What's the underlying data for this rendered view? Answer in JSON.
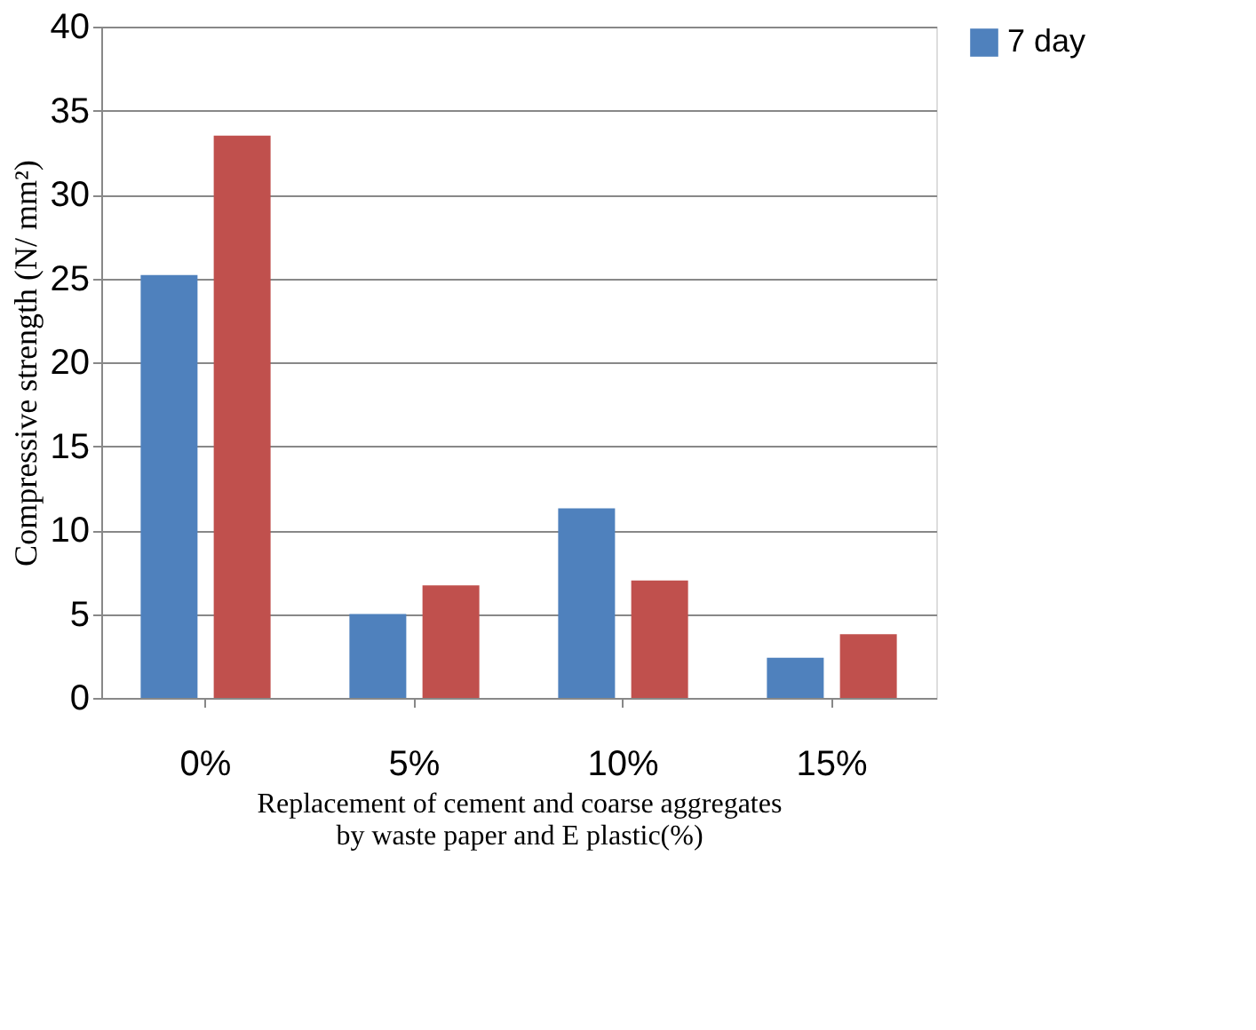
{
  "chart_data": {
    "type": "bar",
    "xlabel": "Replacement of cement  and coarse aggregates  by waste paper and E plastic(%)",
    "ylabel": "Compressive strength  (N/ mm²)",
    "categories": [
      "0%",
      "5%",
      "10%",
      "15%"
    ],
    "series": [
      {
        "name": "7 day",
        "color": "#4f81bd",
        "values": [
          25.2,
          5.0,
          11.3,
          2.4
        ]
      },
      {
        "color": "#c0504d",
        "values": [
          33.5,
          6.7,
          7.0,
          3.8
        ]
      }
    ],
    "ylim": [
      0,
      40
    ],
    "yticks": [
      0,
      5,
      10,
      15,
      20,
      25,
      30,
      35,
      40
    ],
    "grid": "y",
    "legend": "right"
  }
}
